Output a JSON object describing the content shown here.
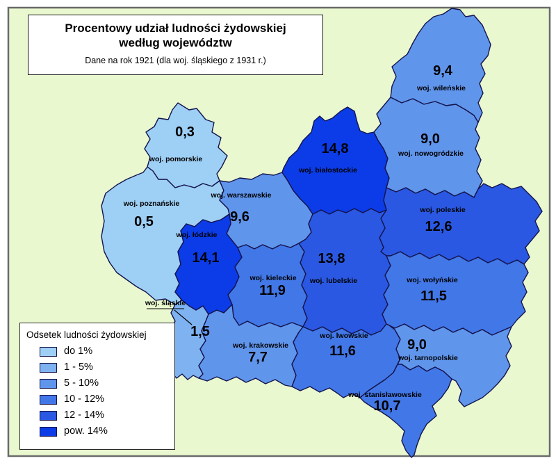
{
  "page": {
    "background": "#ffffff",
    "canvas_fill": "#e9f8cf",
    "canvas_border": "#6a6a6a"
  },
  "title_box": {
    "line1": "Procentowy udział ludności żydowskiej",
    "line2": "według województw",
    "subtitle": "Dane na rok 1921 (dla woj. śląskiego z 1931 r.)"
  },
  "legend": {
    "title": "Odsetek ludności żydowskiej",
    "items": [
      {
        "label": "do 1%",
        "color": "#9ecff5"
      },
      {
        "label": "1 - 5%",
        "color": "#7eb2f1"
      },
      {
        "label": "5 - 10%",
        "color": "#6095ec"
      },
      {
        "label": "10 - 12%",
        "color": "#4277e7"
      },
      {
        "label": "12 - 14%",
        "color": "#2a58e2"
      },
      {
        "label": "pow. 14%",
        "color": "#0c3ce8"
      }
    ]
  },
  "map": {
    "border_color": "#14144d",
    "label_color": "#000000",
    "regions": [
      {
        "id": "pomorskie",
        "name": "woj. pomorskie",
        "value": "0,3",
        "bucket": 0
      },
      {
        "id": "poznanskie",
        "name": "woj. poznańskie",
        "value": "0,5",
        "bucket": 0
      },
      {
        "id": "warszawskie",
        "name": "woj. warszawskie",
        "value": "9,6",
        "bucket": 2
      },
      {
        "id": "bialostockie",
        "name": "woj. białostockie",
        "value": "14,8",
        "bucket": 5
      },
      {
        "id": "wilenskie",
        "name": "woj. wileńskie",
        "value": "9,4",
        "bucket": 2
      },
      {
        "id": "nowogrodzkie",
        "name": "woj. nowogródzkie",
        "value": "9,0",
        "bucket": 2
      },
      {
        "id": "poleskie",
        "name": "woj. poleskie",
        "value": "12,6",
        "bucket": 4
      },
      {
        "id": "lodzkie",
        "name": "woj. łódzkie",
        "value": "14,1",
        "bucket": 5
      },
      {
        "id": "kieleckie",
        "name": "woj. kieleckie",
        "value": "11,9",
        "bucket": 3
      },
      {
        "id": "lubelskie",
        "name": "woj. lubelskie",
        "value": "13,8",
        "bucket": 4
      },
      {
        "id": "wolynskie",
        "name": "woj. wołyńskie",
        "value": "11,5",
        "bucket": 3
      },
      {
        "id": "slaskie",
        "name": "woj. śląskie",
        "value": "1,5",
        "bucket": 1,
        "callout": true
      },
      {
        "id": "krakowskie",
        "name": "woj. krakowskie",
        "value": "7,7",
        "bucket": 2
      },
      {
        "id": "lwowskie",
        "name": "woj. lwowskie",
        "value": "11,6",
        "bucket": 3
      },
      {
        "id": "tarnopolskie",
        "name": "woj. tarnopolskie",
        "value": "9,0",
        "bucket": 2
      },
      {
        "id": "stanislawowskie",
        "name": "woj. stanisławowskie",
        "value": "10,7",
        "bucket": 3
      }
    ]
  }
}
